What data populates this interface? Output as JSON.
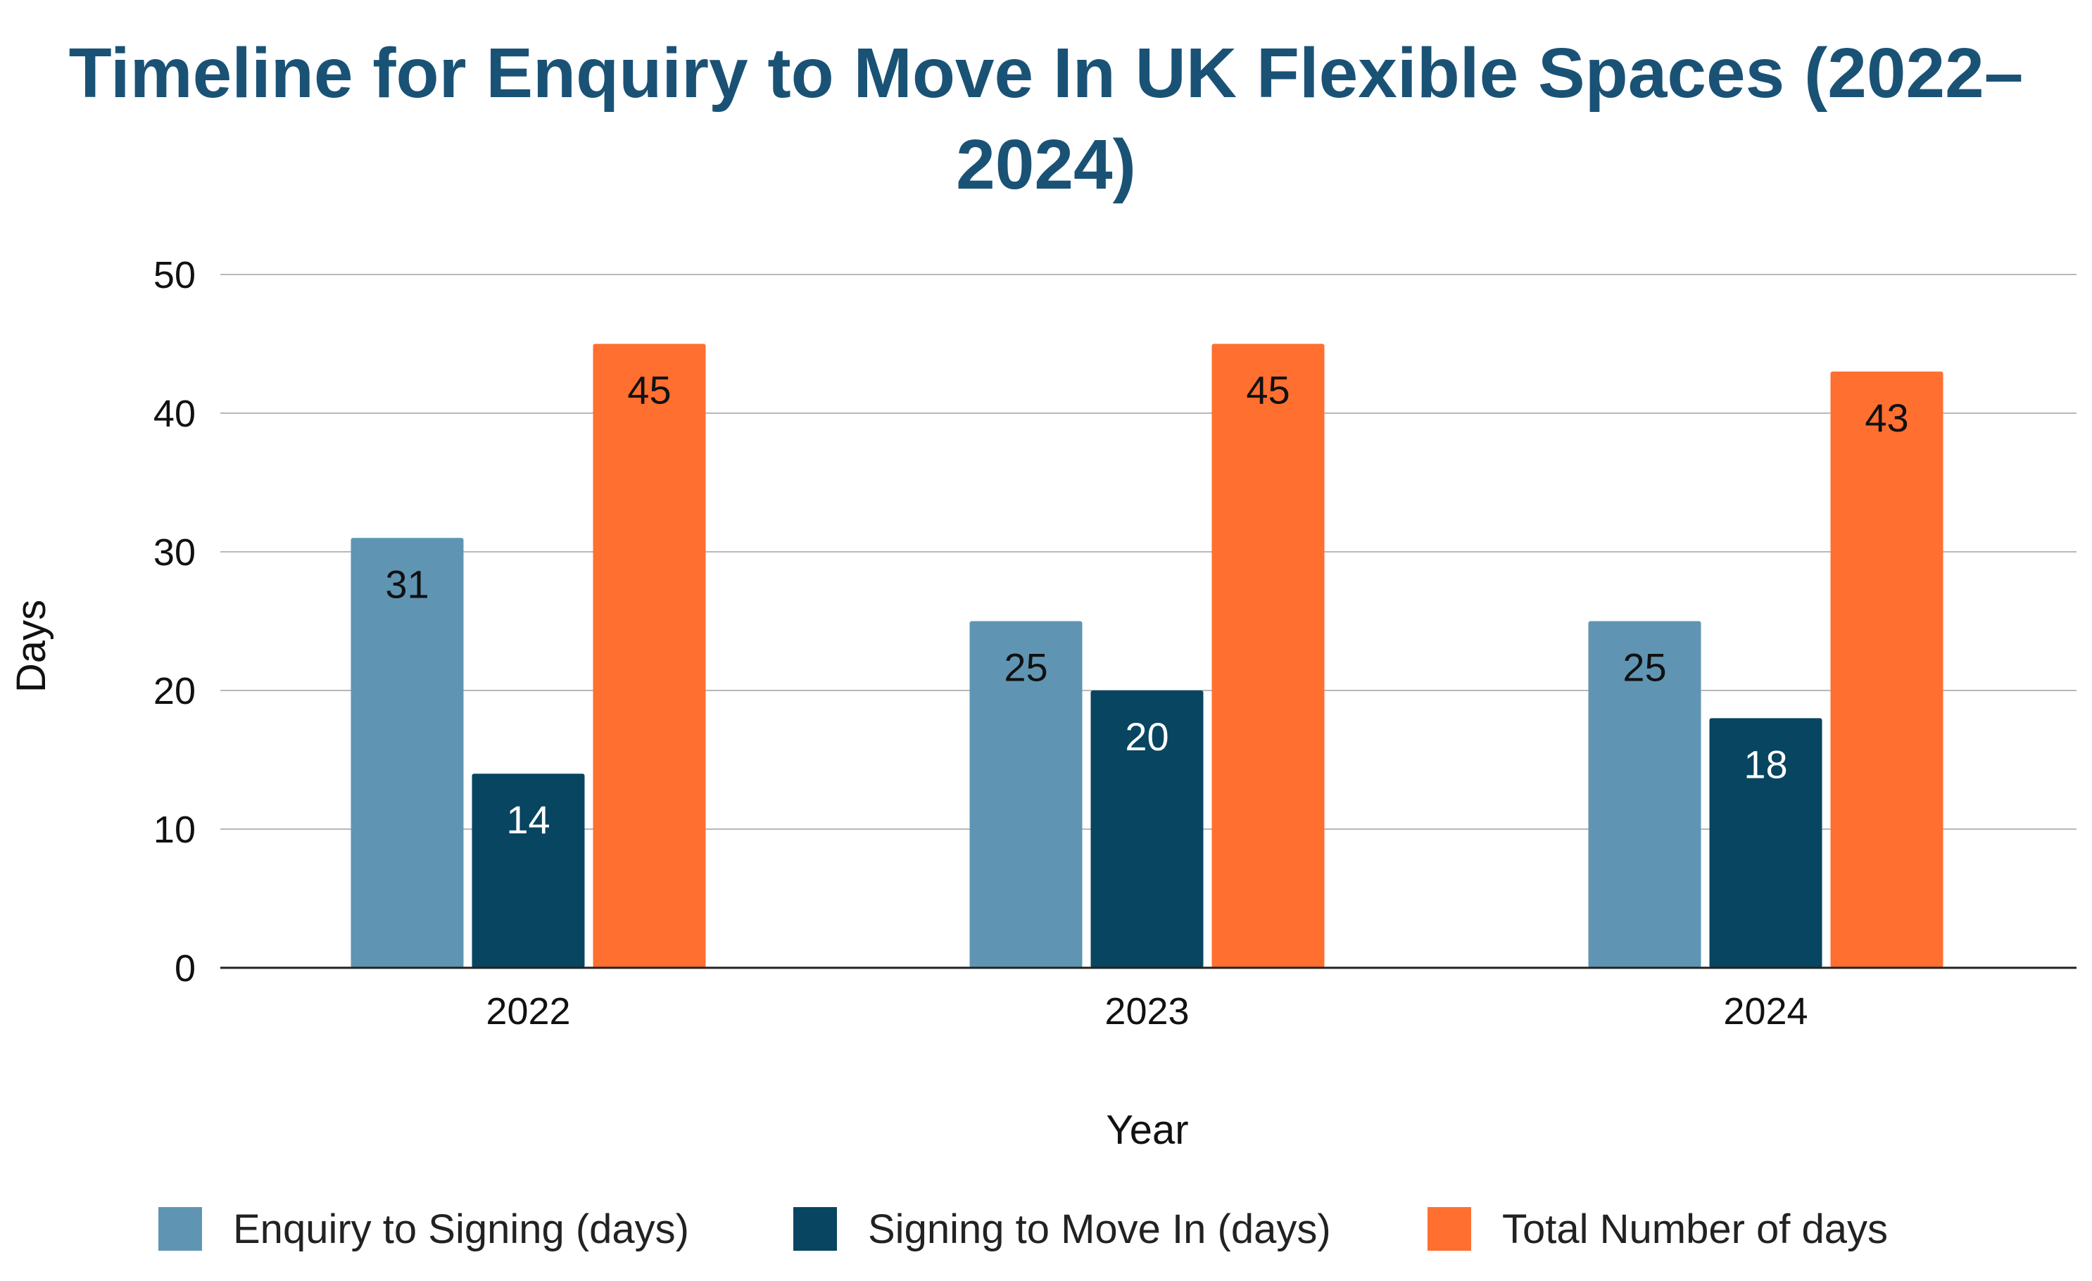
{
  "chart_data": {
    "type": "bar",
    "title_lines": [
      "Timeline for Enquiry to Move In UK Flexible Spaces (2022–",
      "2024)"
    ],
    "xlabel": "Year",
    "ylabel": "Days",
    "ylim": [
      0,
      50
    ],
    "yticks": [
      "0",
      "10",
      "20",
      "30",
      "40",
      "50"
    ],
    "grid": true,
    "legend_position": "bottom",
    "categories": [
      "2022",
      "2023",
      "2024"
    ],
    "series": [
      {
        "name": "Enquiry to Signing (days)",
        "values": [
          31,
          25,
          25
        ],
        "color": "#5f95b3",
        "label_color": "#111111"
      },
      {
        "name": "Signing to Move In (days)",
        "values": [
          14,
          20,
          18
        ],
        "color": "#084561",
        "label_color": "#ffffff"
      },
      {
        "name": "Total Number of days",
        "values": [
          45,
          45,
          43
        ],
        "color": "#fe6f30",
        "label_color": "#111111"
      }
    ]
  }
}
